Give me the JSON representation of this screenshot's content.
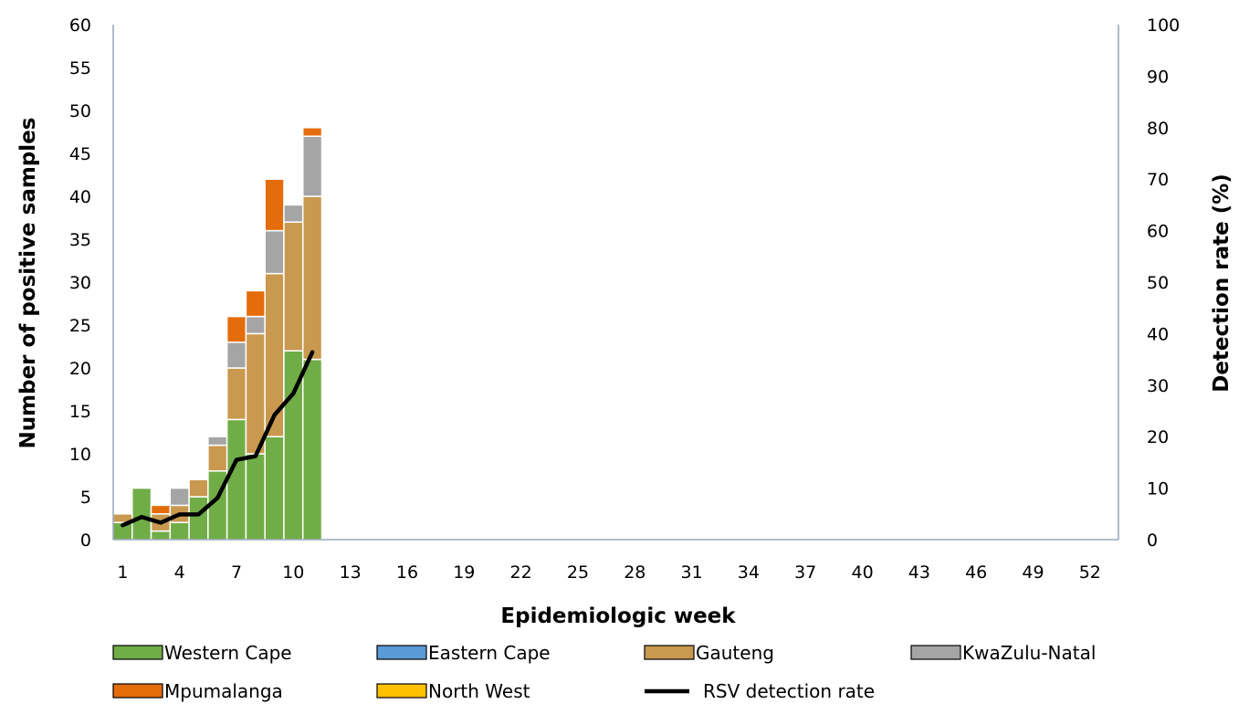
{
  "chart_data": {
    "type": "bar",
    "stacked": true,
    "xlabel": "Epidemiologic week",
    "ylabel": "Number of positive samples",
    "y2label": "Detection rate (%)",
    "weeks_shown": [
      1,
      2,
      3,
      4,
      5,
      6,
      7,
      8,
      9,
      10,
      11
    ],
    "x_range": [
      1,
      53
    ],
    "x_tick_labels": [
      "1",
      "4",
      "7",
      "10",
      "13",
      "16",
      "19",
      "22",
      "25",
      "28",
      "31",
      "34",
      "37",
      "40",
      "43",
      "46",
      "49",
      "52"
    ],
    "ylim": [
      0,
      60
    ],
    "y_ticks": [
      "0",
      "5",
      "10",
      "15",
      "20",
      "25",
      "30",
      "35",
      "40",
      "45",
      "50",
      "55",
      "60"
    ],
    "y2lim": [
      0,
      100
    ],
    "y2_ticks": [
      "0",
      "10",
      "20",
      "30",
      "40",
      "50",
      "60",
      "70",
      "80",
      "90",
      "100"
    ],
    "grid": false,
    "legend_position": "bottom",
    "series": [
      {
        "name": "Western Cape",
        "color": "#70AD47",
        "values": [
          2,
          6,
          1,
          2,
          5,
          8,
          14,
          10,
          12,
          22,
          21
        ]
      },
      {
        "name": "Eastern Cape",
        "color": "#5B9BD5",
        "values": [
          0,
          0,
          0,
          0,
          0,
          0,
          0,
          0,
          0,
          0,
          0
        ]
      },
      {
        "name": "Gauteng",
        "color": "#C9994F",
        "values": [
          1,
          0,
          2,
          2,
          2,
          3,
          6,
          14,
          19,
          15,
          19
        ]
      },
      {
        "name": "KwaZulu-Natal",
        "color": "#A5A5A5",
        "values": [
          0,
          0,
          0,
          2,
          0,
          1,
          3,
          2,
          5,
          2,
          7
        ]
      },
      {
        "name": "Mpumalanga",
        "color": "#E46C0A",
        "values": [
          0,
          0,
          1,
          0,
          0,
          0,
          3,
          3,
          6,
          0,
          1
        ]
      },
      {
        "name": "North West",
        "color": "#FFC000",
        "values": [
          0,
          0,
          0,
          0,
          0,
          0,
          0,
          0,
          0,
          0,
          0
        ]
      }
    ],
    "line_series": {
      "name": "RSV detection rate",
      "color": "#000000",
      "axis": "right",
      "values": [
        2.8,
        4.4,
        3.3,
        4.9,
        4.9,
        8.1,
        15.5,
        16.2,
        24.2,
        28.4,
        36.4
      ]
    }
  }
}
